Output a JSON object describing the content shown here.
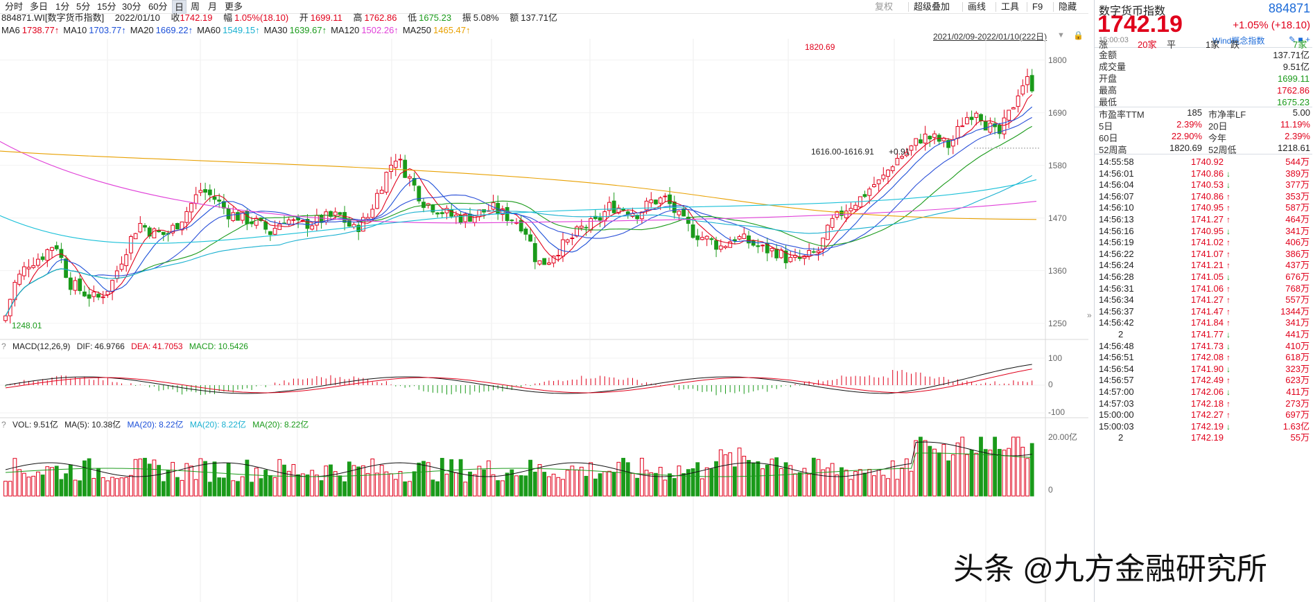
{
  "toolbar": {
    "periods": [
      "分时",
      "多日",
      "1分",
      "5分",
      "15分",
      "30分",
      "60分",
      "日",
      "周",
      "月",
      "更多"
    ],
    "active_period": "日",
    "tools": [
      "复权",
      "超级叠加",
      "画线",
      "工具",
      "F9",
      "隐藏"
    ]
  },
  "quote_line": {
    "code": "884871.WI[数字货币指数]",
    "date": "2022/01/10",
    "close_label": "收",
    "close": "1742.19",
    "change_label": "幅",
    "change": "1.05%(18.10)",
    "open_label": "开",
    "open": "1699.11",
    "high_label": "高",
    "high": "1762.86",
    "low_label": "低",
    "low": "1675.23",
    "amp_label": "振",
    "amp": "5.08%",
    "amount_label": "额",
    "amount": "137.71亿"
  },
  "ma_line": [
    {
      "label": "MA6",
      "value": "1738.77↑",
      "color": "#e0001b"
    },
    {
      "label": "MA10",
      "value": "1703.77↑",
      "color": "#1b4fd8"
    },
    {
      "label": "MA20",
      "value": "1669.22↑",
      "color": "#1b4fd8"
    },
    {
      "label": "MA60",
      "value": "1549.15↑",
      "color": "#19b0d0"
    },
    {
      "label": "MA30",
      "value": "1639.67↑",
      "color": "#1a9a1a"
    },
    {
      "label": "MA120",
      "value": "1502.26↑",
      "color": "#e040d8"
    },
    {
      "label": "MA250",
      "value": "1465.47↑",
      "color": "#e8a000"
    }
  ],
  "range_text": "2021/02/09-2022/01/10(222日)",
  "price_axis": [
    "1800",
    "1690",
    "1580",
    "1470",
    "1360",
    "1250"
  ],
  "annotations": {
    "high": "1820.69",
    "low": "1248.01",
    "range": "1616.00-1616.91",
    "range_chg": "+0.91"
  },
  "macd": {
    "title": "MACD(12,26,9)",
    "dif_label": "DIF:",
    "dif": "46.9766",
    "dea_label": "DEA:",
    "dea": "41.7053",
    "macd_label": "MACD:",
    "macd": "10.5426",
    "axis": [
      "100",
      "0",
      "-100"
    ]
  },
  "vol": {
    "vol_label": "VOL:",
    "vol": "9.51亿",
    "ma5_label": "MA(5):",
    "ma5": "10.38亿",
    "ma20a_label": "MA(20):",
    "ma20a": "8.22亿",
    "ma20b_label": "MA(20):",
    "ma20b": "8.22亿",
    "ma20c_label": "MA(20):",
    "ma20c": "8.22亿",
    "axis": [
      "20.00亿",
      "0"
    ]
  },
  "panel": {
    "name": "数字货币指数",
    "code": "884871",
    "price": "1742.19",
    "change": "+1.05% (+18.10)",
    "time": "15:00:03",
    "wind": "Wind概念指数",
    "breadth": {
      "up_label": "涨",
      "up": "20家",
      "flat_label": "平",
      "flat": "1家",
      "down_label": "跌",
      "down": "7家"
    },
    "stats": [
      {
        "k": "金额",
        "v": "137.71亿",
        "c": "#222"
      },
      {
        "k": "成交量",
        "v": "9.51亿",
        "c": "#222"
      },
      {
        "k": "开盘",
        "v": "1699.11",
        "c": "#1a9a1a"
      },
      {
        "k": "最高",
        "v": "1762.86",
        "c": "#e0001b"
      },
      {
        "k": "最低",
        "v": "1675.23",
        "c": "#1a9a1a"
      }
    ],
    "valuation": [
      {
        "k1": "市盈率TTM",
        "v1": "185",
        "c1": "#222",
        "k2": "市净率LF",
        "v2": "5.00",
        "c2": "#222"
      },
      {
        "k1": "5日",
        "v1": "2.39%",
        "c1": "#e0001b",
        "k2": "20日",
        "v2": "11.19%",
        "c2": "#e0001b"
      },
      {
        "k1": "60日",
        "v1": "22.90%",
        "c1": "#e0001b",
        "k2": "今年",
        "v2": "2.39%",
        "c2": "#e0001b"
      },
      {
        "k1": "52周高",
        "v1": "1820.69",
        "c1": "#222",
        "k2": "52周低",
        "v2": "1218.61",
        "c2": "#222"
      }
    ],
    "ticks": [
      {
        "t": "14:55:58",
        "p": "1740.92",
        "a": "",
        "v": "544万"
      },
      {
        "t": "14:56:01",
        "p": "1740.86",
        "a": "down",
        "v": "389万"
      },
      {
        "t": "14:56:04",
        "p": "1740.53",
        "a": "down",
        "v": "377万"
      },
      {
        "t": "14:56:07",
        "p": "1740.86",
        "a": "up",
        "v": "353万"
      },
      {
        "t": "14:56:10",
        "p": "1740.95",
        "a": "up",
        "v": "587万"
      },
      {
        "t": "14:56:13",
        "p": "1741.27",
        "a": "up",
        "v": "464万"
      },
      {
        "t": "14:56:16",
        "p": "1740.95",
        "a": "down",
        "v": "341万"
      },
      {
        "t": "14:56:19",
        "p": "1741.02",
        "a": "up",
        "v": "406万"
      },
      {
        "t": "14:56:22",
        "p": "1741.07",
        "a": "up",
        "v": "386万"
      },
      {
        "t": "14:56:24",
        "p": "1741.21",
        "a": "up",
        "v": "437万"
      },
      {
        "t": "14:56:28",
        "p": "1741.05",
        "a": "down",
        "v": "676万"
      },
      {
        "t": "14:56:31",
        "p": "1741.06",
        "a": "up",
        "v": "768万"
      },
      {
        "t": "14:56:34",
        "p": "1741.27",
        "a": "up",
        "v": "557万"
      },
      {
        "t": "14:56:37",
        "p": "1741.47",
        "a": "up",
        "v": "1344万"
      },
      {
        "t": "14:56:42",
        "p": "1741.84",
        "a": "up",
        "v": "341万"
      },
      {
        "t": "2",
        "p": "1741.77",
        "a": "down",
        "v": "441万"
      },
      {
        "t": "14:56:48",
        "p": "1741.73",
        "a": "down",
        "v": "410万"
      },
      {
        "t": "14:56:51",
        "p": "1742.08",
        "a": "up",
        "v": "618万"
      },
      {
        "t": "14:56:54",
        "p": "1741.90",
        "a": "down",
        "v": "323万"
      },
      {
        "t": "14:56:57",
        "p": "1742.49",
        "a": "up",
        "v": "623万"
      },
      {
        "t": "14:57:00",
        "p": "1742.06",
        "a": "down",
        "v": "411万"
      },
      {
        "t": "14:57:03",
        "p": "1742.18",
        "a": "up",
        "v": "273万"
      },
      {
        "t": "15:00:00",
        "p": "1742.27",
        "a": "up",
        "v": "697万"
      },
      {
        "t": "15:00:03",
        "p": "1742.19",
        "a": "down",
        "v": "1.63亿"
      },
      {
        "t": "2",
        "p": "1742.19",
        "a": "",
        "v": "55万"
      }
    ]
  },
  "watermark": "头条 @九方金融研究所"
}
